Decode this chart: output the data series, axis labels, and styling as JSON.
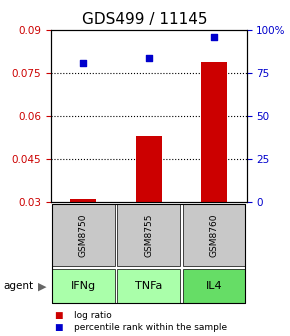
{
  "title": "GDS499 / 11145",
  "samples": [
    "GSM8750",
    "GSM8755",
    "GSM8760"
  ],
  "agents": [
    "IFNg",
    "TNFa",
    "IL4"
  ],
  "log_ratio": [
    0.031,
    0.053,
    0.079
  ],
  "percentile_rank": [
    0.81,
    0.84,
    0.96
  ],
  "ylim_left": [
    0.03,
    0.09
  ],
  "ylim_right": [
    0.0,
    1.0
  ],
  "yticks_left": [
    0.03,
    0.045,
    0.06,
    0.075,
    0.09
  ],
  "yticks_right": [
    0.0,
    0.25,
    0.5,
    0.75,
    1.0
  ],
  "ytick_labels_left": [
    "0.03",
    "0.045",
    "0.06",
    "0.075",
    "0.09"
  ],
  "ytick_labels_right": [
    "0",
    "25",
    "50",
    "75",
    "100%"
  ],
  "bar_color": "#cc0000",
  "dot_color": "#0000cc",
  "sample_box_color": "#c8c8c8",
  "agent_box_color": "#aaffaa",
  "agent_box_color_dark": "#66dd66",
  "bar_width": 0.4,
  "title_fontsize": 11,
  "tick_fontsize": 7.5,
  "legend_fontsize": 6.5,
  "agent_fontsize": 8,
  "sample_fontsize": 6.5
}
